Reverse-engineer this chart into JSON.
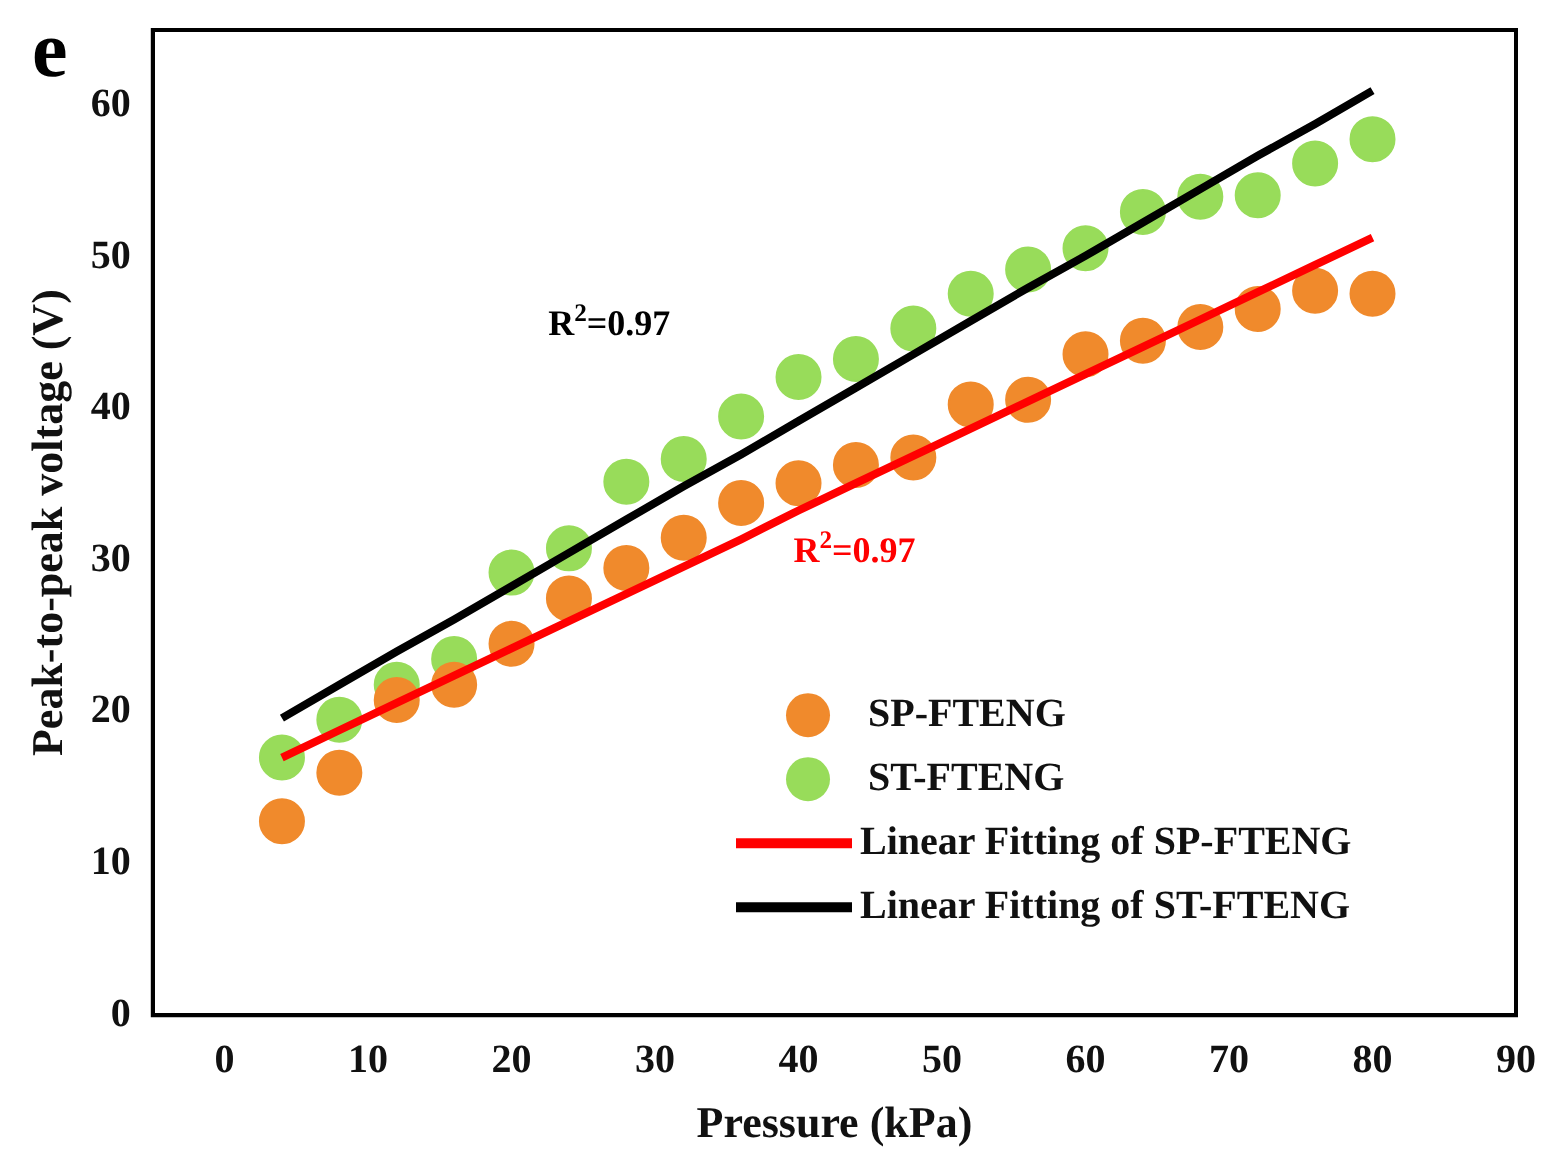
{
  "chart_data": {
    "type": "scatter",
    "xlabel": "Pressure (kPa)",
    "ylabel": "Peak-to-peak voltage (V)",
    "x": [
      4,
      8,
      12,
      16,
      20,
      24,
      28,
      32,
      36,
      40,
      44,
      48,
      52,
      56,
      60,
      64,
      68,
      72,
      76,
      80
    ],
    "series": [
      {
        "name": "SP-FTENG",
        "color": "#f08a2c",
        "marker": "circle",
        "values": [
          12.8,
          16,
          20.8,
          21.8,
          24.5,
          27.5,
          29.5,
          31.5,
          33.8,
          35.1,
          36.3,
          36.8,
          40.3,
          40.6,
          43.6,
          44.5,
          45.4,
          46.6,
          47.8,
          47.6
        ]
      },
      {
        "name": "ST-FTENG",
        "color": "#98dc5a",
        "marker": "circle",
        "values": [
          17,
          19.5,
          21.8,
          23.5,
          29.2,
          30.8,
          35.2,
          36.7,
          39.5,
          42.1,
          43.3,
          45.3,
          47.6,
          49.2,
          50.6,
          53,
          54,
          54.1,
          56.2,
          57.8
        ]
      },
      {
        "name": "Linear Fitting of SP-FTENG",
        "type": "line",
        "color": "#ff0000",
        "values": [
          17,
          18.8,
          20.6,
          22.4,
          24.2,
          26,
          27.8,
          29.6,
          31.4,
          33.3,
          35.1,
          36.9,
          38.7,
          40.5,
          42.3,
          44.1,
          45.9,
          47.7,
          49.5,
          51.3
        ]
      },
      {
        "name": "Linear Fitting of ST-FTENG",
        "type": "line",
        "color": "#000000",
        "values": [
          19.6,
          21.8,
          24,
          26.1,
          28.3,
          30.5,
          32.7,
          34.9,
          37,
          39.2,
          41.4,
          43.6,
          45.8,
          48,
          50.1,
          52.3,
          54.5,
          56.7,
          58.8,
          61
        ]
      }
    ],
    "annotations": [
      "e",
      "R$^{2}$=0.97",
      "R$^{2}$=0.97"
    ],
    "xlim": [
      -5,
      90
    ],
    "xticks": [
      0,
      10,
      20,
      30,
      40,
      50,
      60,
      70,
      80,
      90
    ],
    "ylim": [
      0,
      65
    ],
    "yticks": [
      0,
      10,
      20,
      30,
      40,
      50,
      60
    ],
    "legend": "bottom right",
    "grid": false
  }
}
